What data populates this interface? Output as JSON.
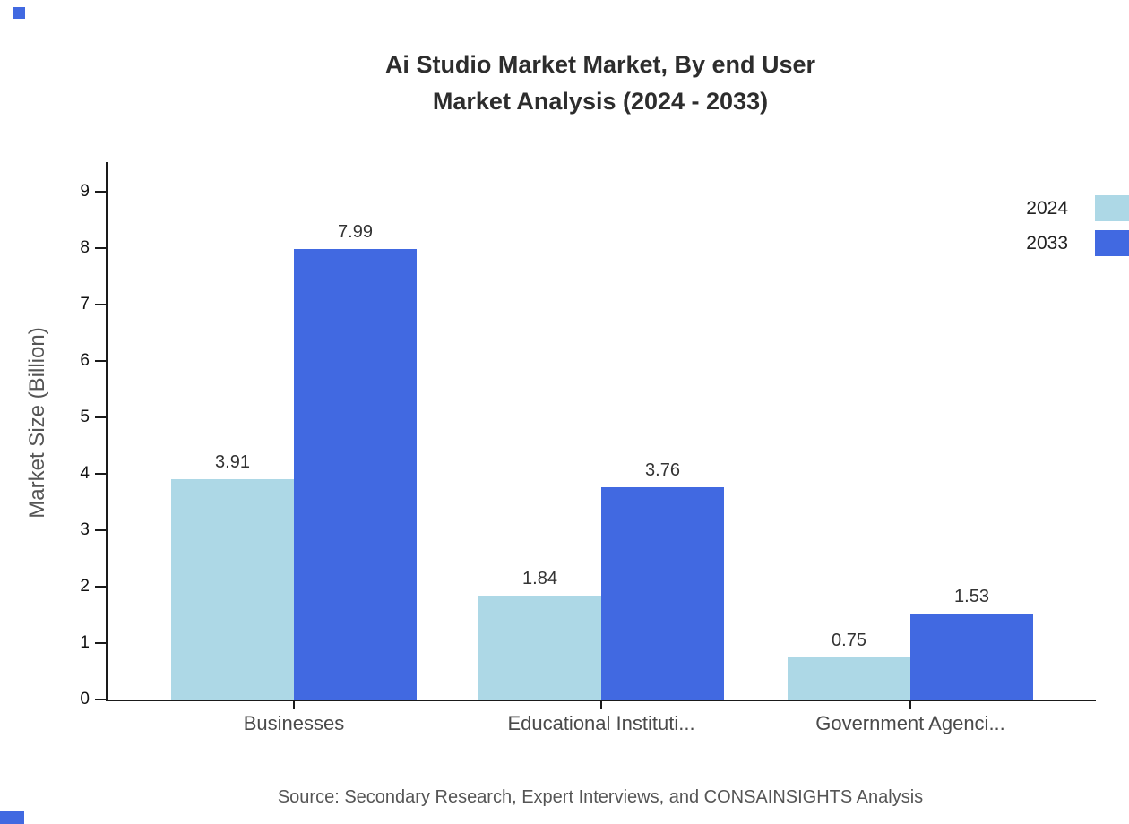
{
  "title_line1": "Ai Studio Market Market, By end User",
  "title_line2": "Market Analysis (2024 - 2033)",
  "source": "Source: Secondary Research, Expert Interviews, and CONSAINSIGHTS Analysis",
  "colors": {
    "series_2024": "#add8e6",
    "series_2033": "#4169e1",
    "axis": "#1a1a1a",
    "corner_mark": "#4169e1"
  },
  "chart_data": {
    "type": "bar",
    "title": "Ai Studio Market Market, By end User Market Analysis (2024 - 2033)",
    "categories": [
      "Businesses",
      "Educational Instituti...",
      "Government Agenci..."
    ],
    "series": [
      {
        "name": "2024",
        "color": "#add8e6",
        "values": [
          3.91,
          1.84,
          0.75
        ]
      },
      {
        "name": "2033",
        "color": "#4169e1",
        "values": [
          7.99,
          3.76,
          1.53
        ]
      }
    ],
    "xlabel": "",
    "ylabel": "Market Size (Billion)",
    "ylim": [
      0,
      9
    ],
    "yticks": [
      0,
      1,
      2,
      3,
      4,
      5,
      6,
      7,
      8,
      9
    ],
    "grid": false,
    "legend_position": "top-right",
    "value_labels": true
  }
}
